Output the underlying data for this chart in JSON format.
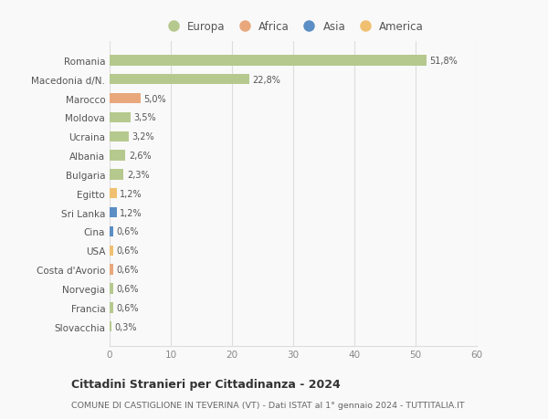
{
  "categories": [
    "Romania",
    "Macedonia d/N.",
    "Marocco",
    "Moldova",
    "Ucraina",
    "Albania",
    "Bulgaria",
    "Egitto",
    "Sri Lanka",
    "Cina",
    "USA",
    "Costa d'Avorio",
    "Norvegia",
    "Francia",
    "Slovacchia"
  ],
  "values": [
    51.8,
    22.8,
    5.0,
    3.5,
    3.2,
    2.6,
    2.3,
    1.2,
    1.2,
    0.6,
    0.6,
    0.6,
    0.6,
    0.6,
    0.3
  ],
  "labels": [
    "51,8%",
    "22,8%",
    "5,0%",
    "3,5%",
    "3,2%",
    "2,6%",
    "2,3%",
    "1,2%",
    "1,2%",
    "0,6%",
    "0,6%",
    "0,6%",
    "0,6%",
    "0,6%",
    "0,3%"
  ],
  "colors": [
    "#b5c98e",
    "#b5c98e",
    "#e8a87c",
    "#b5c98e",
    "#b5c98e",
    "#b5c98e",
    "#b5c98e",
    "#f0c070",
    "#5b8ec4",
    "#5b8ec4",
    "#f0c070",
    "#e8a87c",
    "#b5c98e",
    "#b5c98e",
    "#b5c98e"
  ],
  "legend_labels": [
    "Europa",
    "Africa",
    "Asia",
    "America"
  ],
  "legend_colors": [
    "#b5c98e",
    "#e8a87c",
    "#5b8ec4",
    "#f0c070"
  ],
  "title": "Cittadini Stranieri per Cittadinanza - 2024",
  "subtitle": "COMUNE DI CASTIGLIONE IN TEVERINA (VT) - Dati ISTAT al 1° gennaio 2024 - TUTTITALIA.IT",
  "xlim": [
    0,
    60
  ],
  "xticks": [
    0,
    10,
    20,
    30,
    40,
    50,
    60
  ],
  "background_color": "#f9f9f9",
  "grid_color": "#dddddd",
  "bar_height": 0.55
}
